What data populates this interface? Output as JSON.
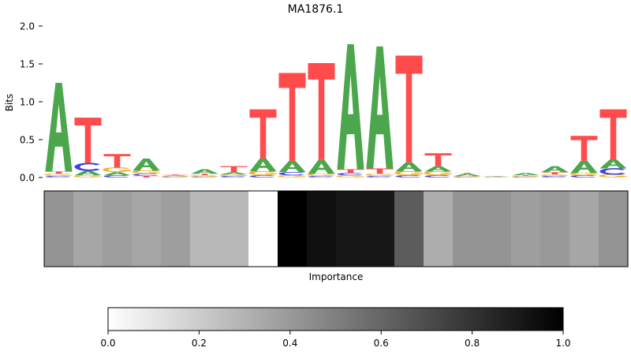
{
  "chart_data": [
    {
      "type": "sequence-logo",
      "title": "MA1876.1",
      "ylabel": "Bits",
      "ylim": [
        0,
        2.0
      ],
      "yticks": [
        "0.0",
        "0.5",
        "1.0",
        "1.5",
        "2.0"
      ],
      "yticks_values": [
        0,
        0.5,
        1.0,
        1.5,
        2.0
      ],
      "letter_colors": {
        "A": "#4ca64c",
        "C": "#4040e0",
        "G": "#f0b030",
        "T": "#ff4b4b"
      },
      "positions": [
        [
          [
            "C",
            0.02
          ],
          [
            "G",
            0.03
          ],
          [
            "T",
            0.03
          ],
          [
            "A",
            1.17
          ]
        ],
        [
          [
            "G",
            0.03
          ],
          [
            "A",
            0.06
          ],
          [
            "C",
            0.1
          ],
          [
            "T",
            0.6
          ]
        ],
        [
          [
            "C",
            0.03
          ],
          [
            "A",
            0.04
          ],
          [
            "G",
            0.06
          ],
          [
            "T",
            0.18
          ]
        ],
        [
          [
            "T",
            0.02
          ],
          [
            "C",
            0.03
          ],
          [
            "G",
            0.04
          ],
          [
            "A",
            0.16
          ]
        ],
        [
          [
            "C",
            0.01
          ],
          [
            "G",
            0.01
          ],
          [
            "A",
            0.01
          ],
          [
            "T",
            0.01
          ]
        ],
        [
          [
            "C",
            0.01
          ],
          [
            "G",
            0.02
          ],
          [
            "T",
            0.02
          ],
          [
            "A",
            0.06
          ]
        ],
        [
          [
            "C",
            0.02
          ],
          [
            "G",
            0.02
          ],
          [
            "A",
            0.03
          ],
          [
            "T",
            0.08
          ]
        ],
        [
          [
            "C",
            0.03
          ],
          [
            "G",
            0.05
          ],
          [
            "A",
            0.17
          ],
          [
            "T",
            0.65
          ]
        ],
        [
          [
            "G",
            0.03
          ],
          [
            "C",
            0.04
          ],
          [
            "A",
            0.15
          ],
          [
            "T",
            1.16
          ]
        ],
        [
          [
            "C",
            0.02
          ],
          [
            "G",
            0.03
          ],
          [
            "A",
            0.18
          ],
          [
            "T",
            1.28
          ]
        ],
        [
          [
            "G",
            0.03
          ],
          [
            "C",
            0.03
          ],
          [
            "T",
            0.05
          ],
          [
            "A",
            1.65
          ]
        ],
        [
          [
            "C",
            0.02
          ],
          [
            "G",
            0.03
          ],
          [
            "T",
            0.07
          ],
          [
            "A",
            1.61
          ]
        ],
        [
          [
            "C",
            0.03
          ],
          [
            "G",
            0.05
          ],
          [
            "A",
            0.12
          ],
          [
            "T",
            1.41
          ]
        ],
        [
          [
            "C",
            0.03
          ],
          [
            "G",
            0.05
          ],
          [
            "A",
            0.07
          ],
          [
            "T",
            0.17
          ]
        ],
        [
          [
            "C",
            0.01
          ],
          [
            "G",
            0.01
          ],
          [
            "A",
            0.03
          ],
          [
            "T",
            0.01
          ]
        ],
        [
          [
            "C",
            0.005
          ],
          [
            "G",
            0.005
          ],
          [
            "A",
            0.005
          ],
          [
            "T",
            0.005
          ]
        ],
        [
          [
            "C",
            0.01
          ],
          [
            "G",
            0.01
          ],
          [
            "T",
            0.01
          ],
          [
            "A",
            0.03
          ]
        ],
        [
          [
            "C",
            0.02
          ],
          [
            "G",
            0.02
          ],
          [
            "T",
            0.03
          ],
          [
            "A",
            0.08
          ]
        ],
        [
          [
            "C",
            0.03
          ],
          [
            "G",
            0.03
          ],
          [
            "A",
            0.16
          ],
          [
            "T",
            0.33
          ]
        ],
        [
          [
            "G",
            0.04
          ],
          [
            "C",
            0.08
          ],
          [
            "A",
            0.12
          ],
          [
            "T",
            0.66
          ]
        ]
      ]
    },
    {
      "type": "heatmap",
      "xlabel": "Importance",
      "values": [
        0.42,
        0.35,
        0.38,
        0.35,
        0.38,
        0.28,
        0.28,
        0.0,
        1.0,
        0.94,
        0.91,
        0.91,
        0.64,
        0.32,
        0.42,
        0.42,
        0.38,
        0.4,
        0.35,
        0.42
      ],
      "colorbar": {
        "range": [
          0.0,
          1.0
        ],
        "ticks": [
          "0.0",
          "0.2",
          "0.4",
          "0.6",
          "0.8",
          "1.0"
        ],
        "ticks_values": [
          0.0,
          0.2,
          0.4,
          0.6,
          0.8,
          1.0
        ]
      }
    }
  ]
}
